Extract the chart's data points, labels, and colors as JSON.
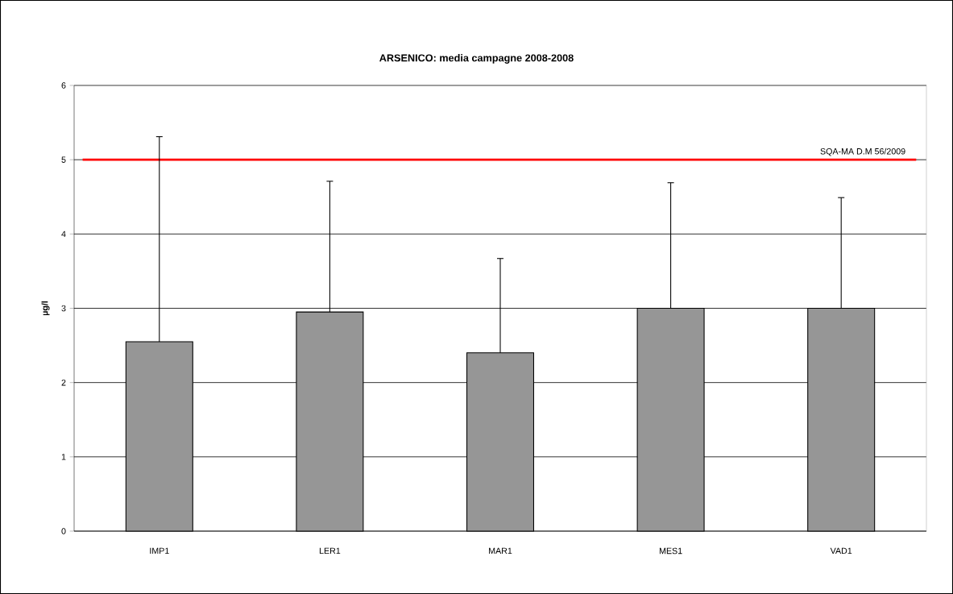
{
  "chart_data": {
    "type": "bar",
    "title": "ARSENICO: media campagne 2008-2008",
    "ylabel": "µg/l",
    "categories": [
      "IMP1",
      "LER1",
      "MAR1",
      "MES1",
      "VAD1"
    ],
    "values": [
      2.55,
      2.95,
      2.4,
      3.0,
      3.0
    ],
    "errors": [
      [
        2.55,
        5.31
      ],
      [
        2.95,
        4.71
      ],
      [
        2.4,
        3.67
      ],
      [
        3.0,
        4.69
      ],
      [
        3.0,
        4.49
      ]
    ],
    "color": "#969696",
    "ylim": [
      0,
      6
    ],
    "yticks": [
      0,
      1,
      2,
      3,
      4,
      5,
      6
    ],
    "grid": "y",
    "ref_lines": [
      {
        "axis": "y",
        "value": 5,
        "label": "SQA-MA D.M 56/2009",
        "color": "#ff0000"
      }
    ]
  }
}
